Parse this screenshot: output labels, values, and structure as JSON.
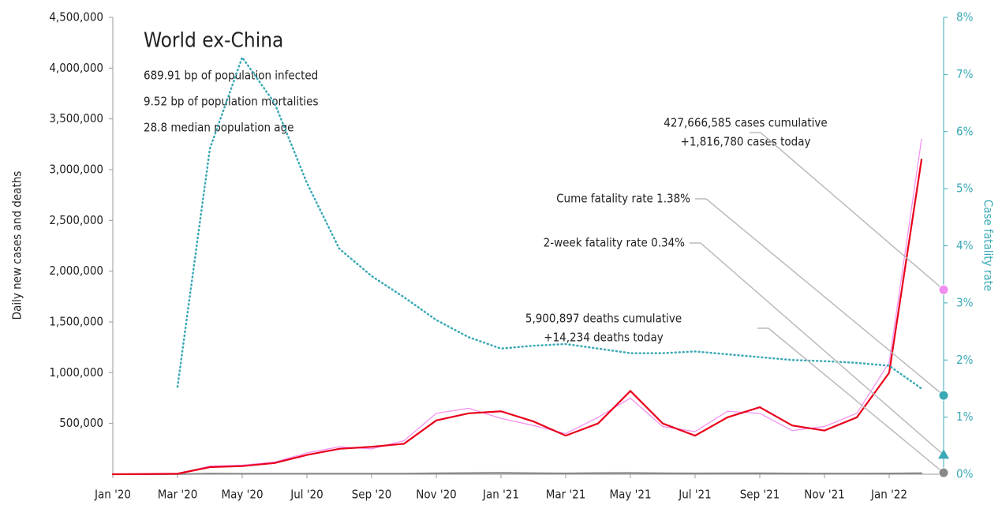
{
  "chart_data": {
    "type": "line",
    "title": "World ex-China",
    "subtitle_lines": [
      "689.91 bp of population infected",
      "9.52 bp of population mortalities",
      "28.8 median population age"
    ],
    "ylabel": "Daily new cases and deaths",
    "y2label": "Case fatality rate",
    "x": [
      "2020-01",
      "2020-02",
      "2020-03",
      "2020-04",
      "2020-05",
      "2020-06",
      "2020-07",
      "2020-08",
      "2020-09",
      "2020-10",
      "2020-11",
      "2020-12",
      "2021-01",
      "2021-02",
      "2021-03",
      "2021-04",
      "2021-05",
      "2021-06",
      "2021-07",
      "2021-08",
      "2021-09",
      "2021-10",
      "2021-11",
      "2021-12",
      "2022-01",
      "2022-02"
    ],
    "xticks": [
      {
        "value": "2020-01",
        "label": "Jan '20"
      },
      {
        "value": "2020-03",
        "label": "Mar '20"
      },
      {
        "value": "2020-05",
        "label": "May '20"
      },
      {
        "value": "2020-07",
        "label": "Jul '20"
      },
      {
        "value": "2020-09",
        "label": "Sep '20"
      },
      {
        "value": "2020-11",
        "label": "Nov '20"
      },
      {
        "value": "2021-01",
        "label": "Jan '21"
      },
      {
        "value": "2021-03",
        "label": "Mar '21"
      },
      {
        "value": "2021-05",
        "label": "May '21"
      },
      {
        "value": "2021-07",
        "label": "Jul '21"
      },
      {
        "value": "2021-09",
        "label": "Sep '21"
      },
      {
        "value": "2021-11",
        "label": "Nov '21"
      },
      {
        "value": "2022-01",
        "label": "Jan '22"
      }
    ],
    "ylim": [
      0,
      4500000
    ],
    "yticks": [
      {
        "value": 500000,
        "label": "500,000"
      },
      {
        "value": 1000000,
        "label": "1,000,000"
      },
      {
        "value": 1500000,
        "label": "1,500,000"
      },
      {
        "value": 2000000,
        "label": "2,000,000"
      },
      {
        "value": 2500000,
        "label": "2,500,000"
      },
      {
        "value": 3000000,
        "label": "3,000,000"
      },
      {
        "value": 3500000,
        "label": "3,500,000"
      },
      {
        "value": 4000000,
        "label": "4,000,000"
      },
      {
        "value": 4500000,
        "label": "4,500,000"
      }
    ],
    "y2lim": [
      0,
      8
    ],
    "y2ticks": [
      {
        "value": 0,
        "label": "0%"
      },
      {
        "value": 1,
        "label": "1%"
      },
      {
        "value": 2,
        "label": "2%"
      },
      {
        "value": 3,
        "label": "3%"
      },
      {
        "value": 4,
        "label": "4%"
      },
      {
        "value": 5,
        "label": "5%"
      },
      {
        "value": 6,
        "label": "6%"
      },
      {
        "value": 7,
        "label": "7%"
      },
      {
        "value": 8,
        "label": "8%"
      }
    ],
    "series": [
      {
        "color": "#f28cf0",
        "width": 1.2,
        "dash": "",
        "values": [
          0,
          2000,
          8000,
          80000,
          90000,
          120000,
          210000,
          270000,
          250000,
          330000,
          600000,
          650000,
          550000,
          480000,
          400000,
          560000,
          750000,
          470000,
          420000,
          620000,
          600000,
          430000,
          470000,
          600000,
          1100000,
          3300000
        ]
      },
      {
        "color": "#888888",
        "width": 2,
        "dash": "",
        "values": [
          0,
          0,
          500,
          6500,
          5000,
          4500,
          5500,
          6000,
          5500,
          6000,
          10000,
          12000,
          14000,
          11000,
          9000,
          12000,
          13000,
          10000,
          8500,
          10000,
          9500,
          7500,
          7000,
          7000,
          7500,
          11000
        ]
      },
      {
        "color": "#e8001c",
        "width": 2.2,
        "dash": "",
        "values": [
          0,
          2000,
          5000,
          70000,
          80000,
          110000,
          190000,
          250000,
          270000,
          300000,
          530000,
          600000,
          620000,
          520000,
          380000,
          500000,
          820000,
          500000,
          380000,
          560000,
          660000,
          480000,
          430000,
          560000,
          1000000,
          3100000
        ]
      },
      {
        "color": "#3aa9b5",
        "width": 2.5,
        "dash": "1 4",
        "axis": "y2",
        "values": [
          null,
          null,
          1.53,
          5.7,
          7.3,
          6.5,
          5.1,
          3.95,
          3.47,
          3.1,
          2.7,
          2.4,
          2.2,
          2.25,
          2.28,
          2.2,
          2.12,
          2.12,
          2.15,
          2.1,
          2.05,
          2.0,
          1.98,
          1.95,
          1.9,
          1.5
        ]
      }
    ],
    "annotations": [
      {
        "lines": [
          "427,666,585 cases cumulative",
          "+1,816,780 cases today"
        ],
        "marker": {
          "value": 1816780,
          "color": "#f28cf0",
          "shape": "circle"
        }
      },
      {
        "lines": [
          "Cume fatality rate 1.38%"
        ],
        "marker": {
          "value": 1.38,
          "axis": "y2",
          "color": "#3aa9b5",
          "shape": "circle"
        }
      },
      {
        "lines": [
          "2-week fatality rate 0.34%"
        ],
        "marker": {
          "value": 0.34,
          "axis": "y2",
          "color": "#3aa9b5",
          "shape": "triangle"
        }
      },
      {
        "lines": [
          "5,900,897 deaths cumulative",
          "+14,234 deaths today"
        ],
        "marker": {
          "value": 14234,
          "color": "#888888",
          "shape": "circle"
        }
      }
    ]
  }
}
